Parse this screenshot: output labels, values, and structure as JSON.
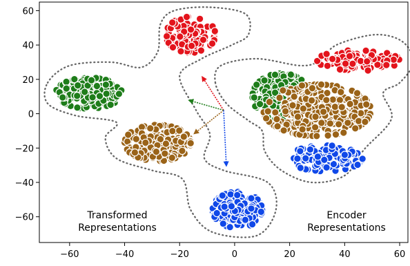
{
  "chart_data": {
    "type": "scatter",
    "title": "",
    "xlabel": "",
    "ylabel": "",
    "xlim": [
      -71,
      63
    ],
    "ylim": [
      -75,
      65
    ],
    "xticks": [
      -60,
      -40,
      -20,
      0,
      20,
      40,
      60
    ],
    "yticks": [
      -60,
      -40,
      -20,
      0,
      20,
      40,
      60
    ],
    "xtick_labels": [
      "−60",
      "−40",
      "−20",
      "0",
      "20",
      "40",
      "60"
    ],
    "ytick_labels": [
      "−60",
      "−40",
      "−20",
      "0",
      "20",
      "40",
      "60"
    ],
    "grid": false,
    "legend": "none",
    "region_labels": {
      "transformed": [
        "Transformed",
        "Representations"
      ],
      "encoder": [
        "Encoder",
        "Representations"
      ]
    },
    "colors": {
      "red": "#e3141c",
      "green": "#1e7d1a",
      "brown": "#9a6318",
      "blue": "#1048e8",
      "outline": "#666666"
    },
    "clusters": [
      {
        "group": "transformed",
        "color": "red",
        "center": [
          -16,
          46
        ],
        "spread": [
          6,
          7
        ],
        "count": 120
      },
      {
        "group": "transformed",
        "color": "green",
        "center": [
          -53,
          12
        ],
        "spread": [
          8,
          6
        ],
        "count": 240
      },
      {
        "group": "transformed",
        "color": "brown",
        "center": [
          -28,
          -17
        ],
        "spread": [
          8,
          7
        ],
        "count": 270
      },
      {
        "group": "transformed",
        "color": "blue",
        "center": [
          1,
          -56
        ],
        "spread": [
          6,
          7
        ],
        "count": 200
      },
      {
        "group": "encoder",
        "color": "red",
        "center": [
          45,
          31
        ],
        "spread": [
          10,
          4
        ],
        "count": 130
      },
      {
        "group": "encoder",
        "color": "green",
        "center": [
          17,
          10
        ],
        "spread": [
          7,
          9
        ],
        "count": 230
      },
      {
        "group": "encoder",
        "color": "brown",
        "center": [
          30,
          2
        ],
        "spread": [
          13,
          10
        ],
        "count": 360
      },
      {
        "group": "encoder",
        "color": "blue",
        "center": [
          33,
          -26
        ],
        "spread": [
          9,
          5
        ],
        "count": 150
      }
    ],
    "arrows": [
      {
        "color": "red",
        "from": [
          -4,
          2
        ],
        "to": [
          -12,
          22
        ]
      },
      {
        "color": "green",
        "from": [
          -4,
          2
        ],
        "to": [
          -17,
          8
        ]
      },
      {
        "color": "brown",
        "from": [
          -4,
          2
        ],
        "to": [
          -15,
          -12
        ]
      },
      {
        "color": "blue",
        "from": [
          -4,
          2
        ],
        "to": [
          -3,
          -31
        ]
      }
    ]
  }
}
